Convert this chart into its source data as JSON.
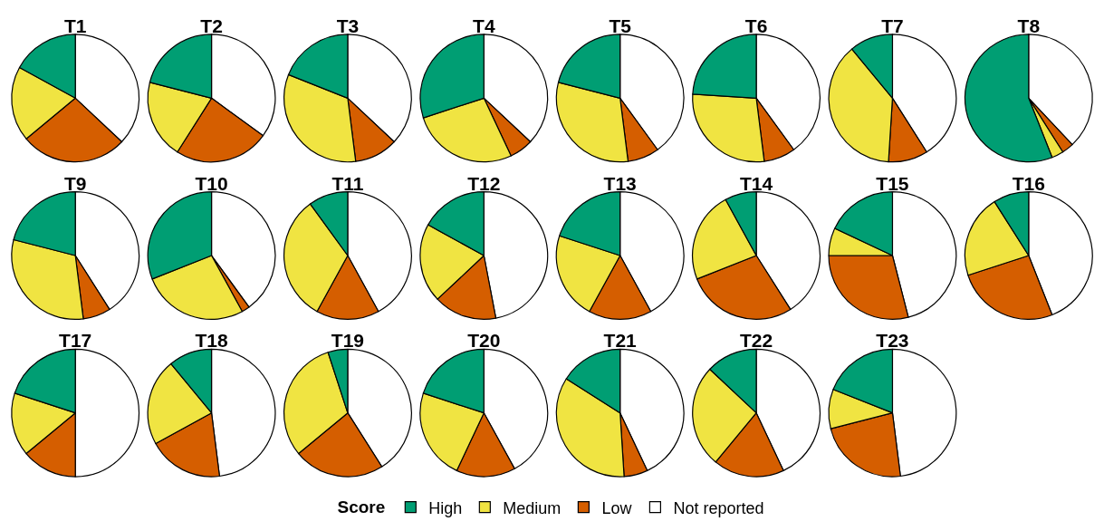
{
  "chart_data": [
    {
      "type": "pie",
      "title": "T1",
      "categories": [
        "High",
        "Medium",
        "Low",
        "Not reported"
      ],
      "values": [
        17,
        19,
        27,
        37
      ],
      "colors": [
        "#009e73",
        "#f0e442",
        "#d55e00",
        "#ffffff"
      ],
      "legend": "bottom",
      "legend_title": "Score"
    },
    {
      "type": "pie",
      "title": "T2",
      "categories": [
        null,
        null,
        null,
        null
      ],
      "values": [
        21,
        20,
        24,
        35
      ],
      "colors": [
        "#009e73",
        "#f0e442",
        "#d55e00",
        "#ffffff"
      ]
    },
    {
      "type": "pie",
      "title": "T3",
      "categories": [
        null,
        null,
        null,
        null
      ],
      "values": [
        19,
        33,
        11,
        37
      ],
      "colors": [
        "#009e73",
        "#f0e442",
        "#d55e00",
        "#ffffff"
      ]
    },
    {
      "type": "pie",
      "title": "T4",
      "categories": [
        null,
        null,
        null,
        null
      ],
      "values": [
        30,
        27,
        6,
        37
      ],
      "colors": [
        "#009e73",
        "#f0e442",
        "#d55e00",
        "#ffffff"
      ]
    },
    {
      "type": "pie",
      "title": "T5",
      "categories": [
        null,
        null,
        null,
        null
      ],
      "values": [
        21,
        31,
        8,
        40
      ],
      "colors": [
        "#009e73",
        "#f0e442",
        "#d55e00",
        "#ffffff"
      ]
    },
    {
      "type": "pie",
      "title": "T6",
      "categories": [
        null,
        null,
        null,
        null
      ],
      "values": [
        24,
        28,
        8,
        40
      ],
      "colors": [
        "#009e73",
        "#f0e442",
        "#d55e00",
        "#ffffff"
      ]
    },
    {
      "type": "pie",
      "title": "T7",
      "categories": [
        null,
        null,
        null,
        null
      ],
      "values": [
        11,
        38,
        10,
        41
      ],
      "colors": [
        "#009e73",
        "#f0e442",
        "#d55e00",
        "#ffffff"
      ]
    },
    {
      "type": "pie",
      "title": "T8",
      "categories": [
        null,
        null,
        null,
        null
      ],
      "values": [
        56,
        3,
        3,
        38
      ],
      "colors": [
        "#009e73",
        "#f0e442",
        "#d55e00",
        "#ffffff"
      ]
    },
    {
      "type": "pie",
      "title": "T9",
      "categories": [
        null,
        null,
        null,
        null
      ],
      "values": [
        21,
        31,
        7,
        41
      ],
      "colors": [
        "#009e73",
        "#f0e442",
        "#d55e00",
        "#ffffff"
      ]
    },
    {
      "type": "pie",
      "title": "T10",
      "categories": [
        null,
        null,
        null,
        null
      ],
      "values": [
        31,
        27,
        2,
        40
      ],
      "colors": [
        "#009e73",
        "#f0e442",
        "#d55e00",
        "#ffffff"
      ]
    },
    {
      "type": "pie",
      "title": "T11",
      "categories": [
        null,
        null,
        null,
        null
      ],
      "values": [
        10,
        32,
        16,
        42
      ],
      "colors": [
        "#009e73",
        "#f0e442",
        "#d55e00",
        "#ffffff"
      ]
    },
    {
      "type": "pie",
      "title": "T12",
      "categories": [
        null,
        null,
        null,
        null
      ],
      "values": [
        17,
        20,
        16,
        47
      ],
      "colors": [
        "#009e73",
        "#f0e442",
        "#d55e00",
        "#ffffff"
      ]
    },
    {
      "type": "pie",
      "title": "T13",
      "categories": [
        null,
        null,
        null,
        null
      ],
      "values": [
        20,
        22,
        16,
        42
      ],
      "colors": [
        "#009e73",
        "#f0e442",
        "#d55e00",
        "#ffffff"
      ]
    },
    {
      "type": "pie",
      "title": "T14",
      "categories": [
        null,
        null,
        null,
        null
      ],
      "values": [
        8,
        23,
        28,
        41
      ],
      "colors": [
        "#009e73",
        "#f0e442",
        "#d55e00",
        "#ffffff"
      ]
    },
    {
      "type": "pie",
      "title": "T15",
      "categories": [
        null,
        null,
        null,
        null
      ],
      "values": [
        18,
        7,
        29,
        46
      ],
      "colors": [
        "#009e73",
        "#f0e442",
        "#d55e00",
        "#ffffff"
      ]
    },
    {
      "type": "pie",
      "title": "T16",
      "categories": [
        null,
        null,
        null,
        null
      ],
      "values": [
        9,
        21,
        26,
        44
      ],
      "colors": [
        "#009e73",
        "#f0e442",
        "#d55e00",
        "#ffffff"
      ]
    },
    {
      "type": "pie",
      "title": "T17",
      "categories": [
        null,
        null,
        null,
        null
      ],
      "values": [
        20,
        16,
        14,
        50
      ],
      "colors": [
        "#009e73",
        "#f0e442",
        "#d55e00",
        "#ffffff"
      ]
    },
    {
      "type": "pie",
      "title": "T18",
      "categories": [
        null,
        null,
        null,
        null
      ],
      "values": [
        11,
        22,
        19,
        48
      ],
      "colors": [
        "#009e73",
        "#f0e442",
        "#d55e00",
        "#ffffff"
      ]
    },
    {
      "type": "pie",
      "title": "T19",
      "categories": [
        null,
        null,
        null,
        null
      ],
      "values": [
        5,
        31,
        23,
        41
      ],
      "colors": [
        "#009e73",
        "#f0e442",
        "#d55e00",
        "#ffffff"
      ]
    },
    {
      "type": "pie",
      "title": "T20",
      "categories": [
        null,
        null,
        null,
        null
      ],
      "values": [
        20,
        23,
        15,
        42
      ],
      "colors": [
        "#009e73",
        "#f0e442",
        "#d55e00",
        "#ffffff"
      ]
    },
    {
      "type": "pie",
      "title": "T21",
      "categories": [
        null,
        null,
        null,
        null
      ],
      "values": [
        16,
        35,
        6,
        43
      ],
      "colors": [
        "#009e73",
        "#f0e442",
        "#d55e00",
        "#ffffff"
      ]
    },
    {
      "type": "pie",
      "title": "T22",
      "categories": [
        null,
        null,
        null,
        null
      ],
      "values": [
        13,
        26,
        18,
        43
      ],
      "colors": [
        "#009e73",
        "#f0e442",
        "#d55e00",
        "#ffffff"
      ]
    },
    {
      "type": "pie",
      "title": "T23",
      "categories": [
        null,
        null,
        null,
        null
      ],
      "values": [
        19,
        10,
        23,
        48
      ],
      "colors": [
        "#009e73",
        "#f0e442",
        "#d55e00",
        "#ffffff"
      ]
    }
  ]
}
